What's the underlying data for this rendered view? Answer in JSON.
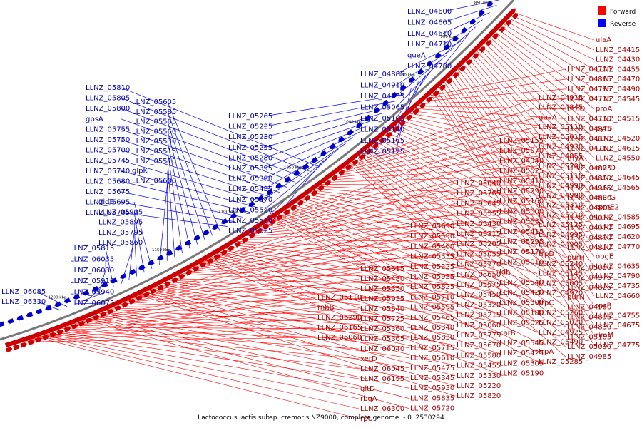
{
  "caption": "Lactococcus lactis subsp. cremoris NZ9000, complete genome. - 0..2530294",
  "legend": [
    {
      "label": "Forward",
      "color": "#ff0000"
    },
    {
      "label": "Reverse",
      "color": "#0000ff"
    }
  ],
  "scale_ticks": [
    "850 kbp",
    "900 kbp",
    "950 kbp",
    "1000 kbp",
    "1050 kbp",
    "1100 kbp",
    "1150 kbp",
    "1200 kbp"
  ],
  "reverse_labels": [
    "LLNZ_04600",
    "LLNZ_04605",
    "LLNZ_04610",
    "LLNZ_04710",
    "queA",
    "LLNZ_04780",
    "LLNZ_04885",
    "LLNZ_04910",
    "LLNZ_04935",
    "LLNZ_05065",
    "LLNZ_05105",
    "LLNZ_05140",
    "LLNZ_05165",
    "LLNZ_05175",
    "LLNZ_05265",
    "LLNZ_05235",
    "LLNZ_05230",
    "LLNZ_05255",
    "LLNZ_05280",
    "LLNZ_05395",
    "LLNZ_05390",
    "LLNZ_05435",
    "LLNZ_05470",
    "LLNZ_05520",
    "LLNZ_05570",
    "LLNZ_05625",
    "LLNZ_05810",
    "LLNZ_05805",
    "LLNZ_05800",
    "gpsA",
    "LLNZ_05755",
    "LLNZ_05750",
    "LLNZ_05700",
    "LLNZ_05745",
    "LLNZ_05740",
    "LLNZ_05680",
    "LLNZ_05675",
    "LLNZ_05695",
    "LLNZ_05705",
    "LLNZ_05605",
    "LLNZ_05585",
    "LLNZ_05565",
    "LLNZ_05560",
    "LLNZ_05530",
    "LLNZ_05515",
    "LLNZ_05510",
    "glpK",
    "LLNZ_05600",
    "gidB",
    "LLNZ_05905",
    "LLNZ_05895",
    "LLNZ_05795",
    "LLNZ_05860",
    "LLNZ_05815",
    "LLNZ_06035",
    "LLNZ_06030",
    "LLNZ_05910",
    "LLNZ_05940",
    "LLNZ_06075",
    "LLNZ_06085",
    "LLNZ_06330"
  ],
  "forward_labels": [
    "ulaA",
    "LLNZ_04415",
    "LLNZ_04430",
    "LLNZ_04455",
    "LLNZ_04470",
    "LLNZ_04490",
    "LLNZ_04545",
    "proA",
    "LLNZ_04515",
    "pyrB",
    "LLNZ_04520",
    "LLNZ_04615",
    "LLNZ_04550",
    "murD",
    "LLNZ_04645",
    "LLNZ_04565",
    "murG",
    "rpmE2",
    "LLNZ_04585",
    "LLNZ_04695",
    "LLNZ_04620",
    "LLNZ_04770",
    "obgE",
    "LLNZ_04635",
    "LLNZ_04790",
    "LLNZ_04735",
    "LLNZ_04660",
    "rpsP",
    "LLNZ_04755",
    "LLNZ_04675",
    "rimM",
    "LLNZ_04775",
    "LLNZ_04705",
    "LLNZ_04865",
    "LLNZ_04785",
    "LLNZ_04715",
    "trmD",
    "LLNZ_04730",
    "LLNZ_04945",
    "LLNZ_04870",
    "LLNZ_04760",
    "thyA",
    "LLNZ_04875",
    "LLNZ_04800",
    "LLNZ_04965",
    "LLNZ_04880",
    "LLNZ_04805",
    "LLNZ_05075",
    "LLNZ_04970",
    "LLNZ_04890",
    "LLNZ_04810",
    "purH",
    "LLNZ_05080",
    "LLNZ_04975",
    "LLNZ_04825",
    "purN",
    "LLNZ_04980",
    "LLNZ_04895",
    "LLNZ_04830",
    "LLNZ_05185",
    "LLNZ_05090",
    "LLNZ_04985",
    "LLNZ_04915",
    "LLNZ_04845",
    "guaA",
    "LLNZ_05110",
    "LLNZ_05015",
    "LLNZ_04930",
    "LLNZ_04855",
    "LLNZ_05200",
    "LLNZ_05115",
    "LLNZ_04990",
    "LLNZ_04900",
    "LLNZ_05310",
    "LLNZ_05210",
    "LLNZ_05125",
    "LLNZ_04995",
    "LLNZ_04905",
    "trpD",
    "LLNZ_05240",
    "LLNZ_05145",
    "LLNZ_05005",
    "LLNZ_04920",
    "trpC",
    "LLNZ_05260",
    "LLNZ_05020",
    "LLNZ_04925",
    "LLNZ_05490",
    "trpA",
    "LLNZ_05285",
    "LLNZ_05155",
    "LLNZ_05070",
    "LLNZ_04940",
    "LLNZ_05525",
    "LLNZ_05410",
    "LLNZ_05290",
    "LLNZ_05160",
    "LLNZ_05000",
    "LLNZ_05535",
    "LLNZ_05415",
    "LLNZ_05295",
    "LLNZ_05170",
    "LLNZ_05010",
    "ldh",
    "LLNZ_05540",
    "LLNZ_05420",
    "LLNZ_05300",
    "LLNZ_05180",
    "LLNZ_05025",
    "carB",
    "LLNZ_05545",
    "LLNZ_05425",
    "LLNZ_05305",
    "LLNZ_05190",
    "LLNZ_05040",
    "LLNZ_05765",
    "LLNZ_05645",
    "LLNZ_05555",
    "LLNZ_05430",
    "LLNZ_05315",
    "LLNZ_05205",
    "LLNZ_05055",
    "LLNZ_05770",
    "LLNZ_05650",
    "LLNZ_05575",
    "LLNZ_05450",
    "LLNZ_05320",
    "LLNZ_05215",
    "LLNZ_05060",
    "LLNZ_05775",
    "LLNZ_05670",
    "LLNZ_05580",
    "LLNZ_05455",
    "LLNZ_05330",
    "LLNZ_05220",
    "LLNZ_05820",
    "LLNZ_05690",
    "LLNZ_05590",
    "LLNZ_05460",
    "LLNZ_05335",
    "LLNZ_05225",
    "LLNZ_05925",
    "LLNZ_05825",
    "LLNZ_05710",
    "LLNZ_05595",
    "LLNZ_05465",
    "LLNZ_05340",
    "LLNZ_05830",
    "LLNZ_05715",
    "LLNZ_05610",
    "LLNZ_05475",
    "LLNZ_05345",
    "LLNZ_05930",
    "LLNZ_05835",
    "LLNZ_05720",
    "LLNZ_05615",
    "LLNZ_05480",
    "LLNZ_05350",
    "LLNZ_05935",
    "LLNZ_05840",
    "LLNZ_05725",
    "LLNZ_05360",
    "LLNZ_05365",
    "LLNZ_06040",
    "xerD",
    "LLNZ_06045",
    "LLNZ_06195",
    "gltD",
    "rbgA",
    "LLNZ_06300",
    "rpU",
    "LLNZ_06110",
    "rnhB",
    "LLNZ_06290",
    "LLNZ_06165",
    "LLNZ_06060"
  ]
}
